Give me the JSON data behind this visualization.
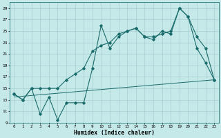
{
  "xlabel": "Humidex (Indice chaleur)",
  "bg_color": "#c5e8e8",
  "grid_color": "#a8d0d0",
  "line_color": "#1a6b6b",
  "xlim": [
    -0.5,
    23.5
  ],
  "ylim": [
    9,
    30
  ],
  "yticks": [
    9,
    11,
    13,
    15,
    17,
    19,
    21,
    23,
    25,
    27,
    29
  ],
  "xticks": [
    0,
    1,
    2,
    3,
    4,
    5,
    6,
    7,
    8,
    9,
    10,
    11,
    12,
    13,
    14,
    15,
    16,
    17,
    18,
    19,
    20,
    21,
    22,
    23
  ],
  "line1_x": [
    0,
    1,
    2,
    3,
    4,
    5,
    6,
    7,
    8,
    9,
    10,
    11,
    12,
    13,
    14,
    15,
    16,
    17,
    18,
    19,
    20,
    21,
    22,
    23
  ],
  "line1_y": [
    14.0,
    13.0,
    15.0,
    10.5,
    13.5,
    9.5,
    12.5,
    12.5,
    12.5,
    18.5,
    26.0,
    22.0,
    24.0,
    25.0,
    25.5,
    24.0,
    23.5,
    25.0,
    24.5,
    29.0,
    27.5,
    22.0,
    19.5,
    16.5
  ],
  "line2_x": [
    0,
    1,
    2,
    3,
    4,
    5,
    6,
    7,
    8,
    9,
    10,
    11,
    12,
    13,
    14,
    15,
    16,
    17,
    18,
    19,
    20,
    21,
    22,
    23
  ],
  "line2_y": [
    14.0,
    13.0,
    15.0,
    15.0,
    15.0,
    15.0,
    16.5,
    17.5,
    18.5,
    21.5,
    22.5,
    23.0,
    24.5,
    25.0,
    25.5,
    24.0,
    24.0,
    24.5,
    25.0,
    29.0,
    27.5,
    24.0,
    22.0,
    16.5
  ],
  "line3_x": [
    0,
    23
  ],
  "line3_y": [
    13.5,
    16.5
  ]
}
